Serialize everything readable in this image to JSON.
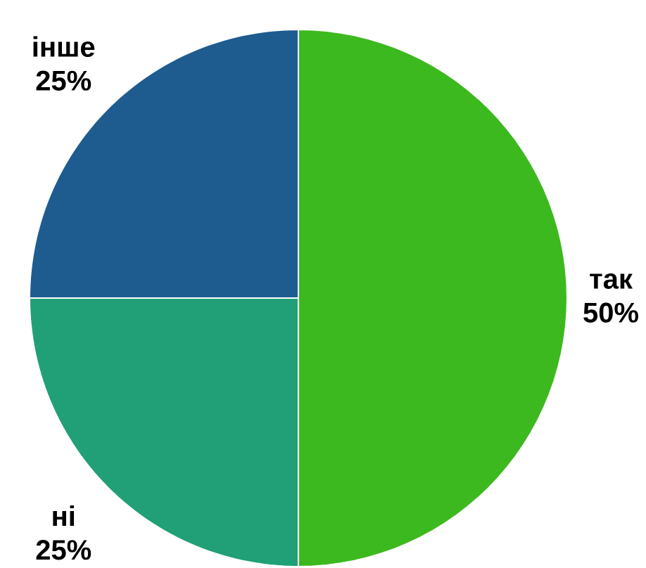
{
  "chart_data": {
    "type": "pie",
    "categories": [
      "так",
      "ні",
      "інше"
    ],
    "values": [
      50,
      25,
      25
    ],
    "value_labels": [
      "50%",
      "25%",
      "25%"
    ],
    "colors": [
      "#3cb91f",
      "#21a077",
      "#1e5c8f"
    ]
  }
}
